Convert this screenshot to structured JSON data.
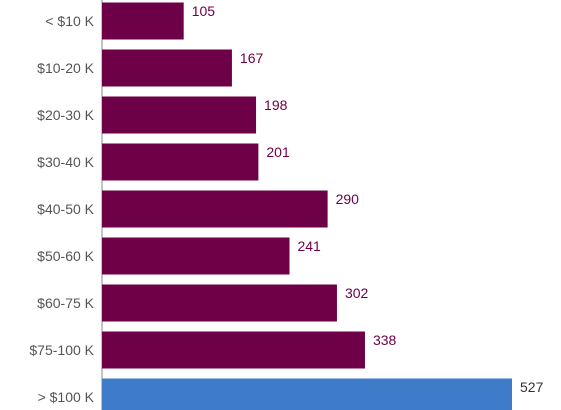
{
  "chart_data": {
    "type": "bar",
    "orientation": "horizontal",
    "title": "",
    "xlabel": "",
    "ylabel": "",
    "categories": [
      "< $10 K",
      "$10-20 K",
      "$20-30 K",
      "$30-40 K",
      "$40-50 K",
      "$50-60 K",
      "$60-75 K",
      "$75-100 K",
      "> $100 K"
    ],
    "values": [
      105,
      167,
      198,
      201,
      290,
      241,
      302,
      338,
      527
    ],
    "highlight_index": 8,
    "xlim": [
      0,
      527
    ],
    "grid": false,
    "legend": "none",
    "colors": {
      "bar": "#6d0046",
      "highlight": "#3e7bc8",
      "value_label": "#6d0046",
      "value_label_highlight": "#333333",
      "category_label": "#555555",
      "axis": "#888888"
    }
  }
}
